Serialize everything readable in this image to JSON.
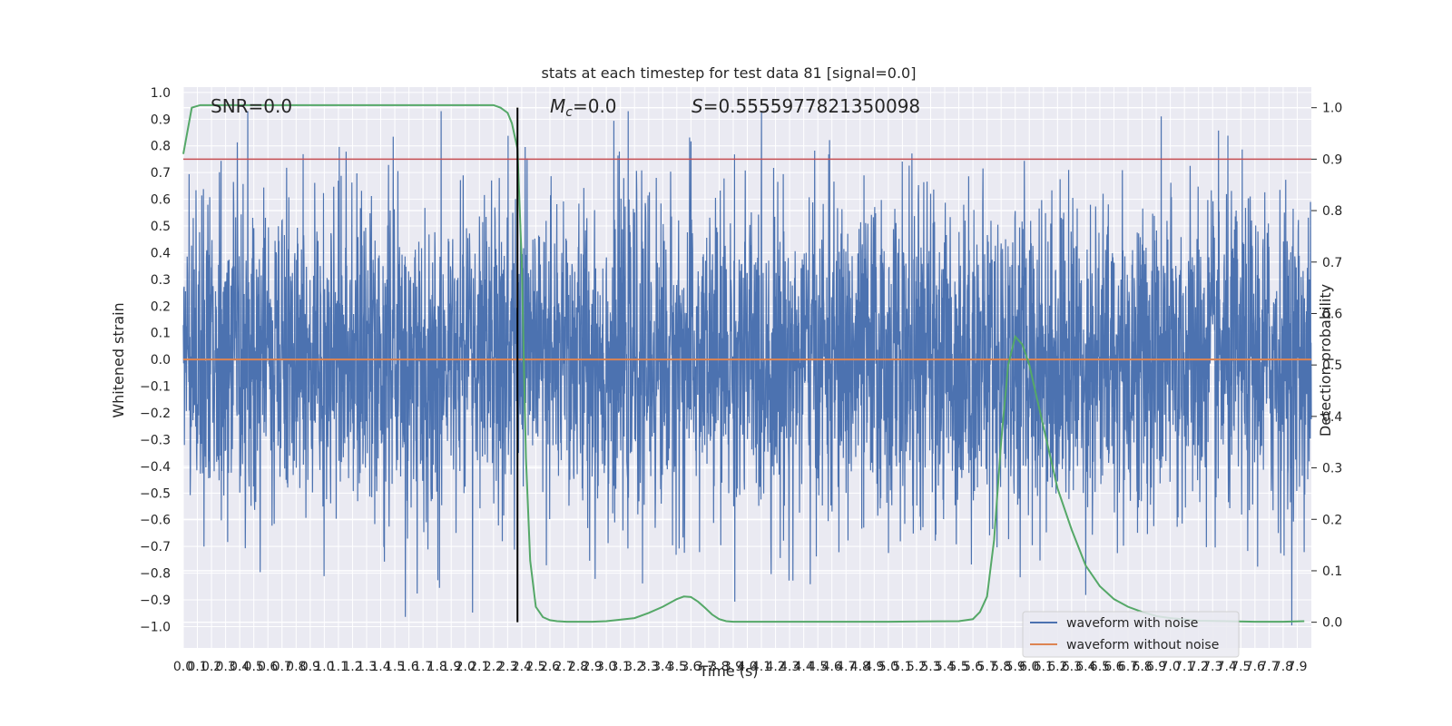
{
  "chart_data": {
    "type": "line",
    "title": "stats at each timestep for test data 81 [signal=0.0]",
    "xlabel": "Time (s)",
    "ylabel_left": "Whitened strain",
    "ylabel_right": "Detection probability",
    "xlim": [
      0.0,
      8.0
    ],
    "ylim_left": [
      -1.08,
      1.02
    ],
    "ylim_right": [
      -0.05,
      1.04
    ],
    "grid": true,
    "x_ticks": [
      "0.0",
      "0.1",
      "0.2",
      "0.3",
      "0.4",
      "0.5",
      "0.6",
      "0.7",
      "0.8",
      "0.9",
      "1.0",
      "1.1",
      "1.2",
      "1.3",
      "1.4",
      "1.5",
      "1.6",
      "1.7",
      "1.8",
      "1.9",
      "2.0",
      "2.1",
      "2.2",
      "2.3",
      "2.4",
      "2.5",
      "2.6",
      "2.7",
      "2.8",
      "2.9",
      "3.0",
      "3.1",
      "3.2",
      "3.3",
      "3.4",
      "3.5",
      "3.6",
      "3.7",
      "3.8",
      "3.9",
      "4.0",
      "4.1",
      "4.2",
      "4.3",
      "4.4",
      "4.5",
      "4.6",
      "4.7",
      "4.8",
      "4.9",
      "5.0",
      "5.1",
      "5.2",
      "5.3",
      "5.4",
      "5.5",
      "5.6",
      "5.7",
      "5.8",
      "5.9",
      "6.0",
      "6.1",
      "6.2",
      "6.3",
      "6.4",
      "6.5",
      "6.6",
      "6.7",
      "6.8",
      "6.9",
      "7.0",
      "7.1",
      "7.2",
      "7.3",
      "7.4",
      "7.5",
      "7.6",
      "7.7",
      "7.8",
      "7.9"
    ],
    "y_ticks_left": [
      "−1.0",
      "−0.9",
      "−0.8",
      "−0.7",
      "−0.6",
      "−0.5",
      "−0.4",
      "−0.3",
      "−0.2",
      "−0.1",
      "0.0",
      "0.1",
      "0.2",
      "0.3",
      "0.4",
      "0.5",
      "0.6",
      "0.7",
      "0.8",
      "0.9",
      "1.0"
    ],
    "y_ticks_right": [
      "0.0",
      "0.1",
      "0.2",
      "0.3",
      "0.4",
      "0.5",
      "0.6",
      "0.7",
      "0.8",
      "0.9",
      "1.0"
    ],
    "annotations": {
      "snr": "SNR=0.0",
      "mc_symbol": "M",
      "mc_sub": "c",
      "mc_value": "=0.0",
      "s_symbol": "S",
      "s_value": "=0.5555977821350098"
    },
    "threshold_right": 0.9,
    "vertical_marker_x": 2.37,
    "noise_std": 0.3,
    "series": [
      {
        "name": "waveform with noise",
        "color": "#4c72b0",
        "axis": "left",
        "kind": "noise",
        "x_range": [
          0.0,
          8.0
        ]
      },
      {
        "name": "waveform without noise",
        "color": "#dd8452",
        "axis": "left",
        "kind": "constant",
        "value": 0.0
      },
      {
        "name": "detection probability",
        "color": "#55a868",
        "axis": "right",
        "x": [
          0.0,
          0.06,
          0.12,
          0.2,
          0.3,
          0.5,
          1.0,
          1.5,
          2.0,
          2.1,
          2.2,
          2.25,
          2.3,
          2.33,
          2.37,
          2.4,
          2.43,
          2.46,
          2.5,
          2.55,
          2.6,
          2.65,
          2.72,
          2.8,
          2.9,
          3.0,
          3.2,
          3.3,
          3.4,
          3.5,
          3.55,
          3.6,
          3.65,
          3.7,
          3.75,
          3.8,
          3.85,
          3.9,
          4.0,
          4.5,
          5.0,
          5.5,
          5.6,
          5.65,
          5.7,
          5.75,
          5.8,
          5.85,
          5.9,
          5.95,
          6.0,
          6.05,
          6.1,
          6.15,
          6.2,
          6.3,
          6.4,
          6.5,
          6.6,
          6.7,
          6.8,
          6.9,
          7.0,
          7.2,
          7.4,
          7.6,
          7.8,
          7.95
        ],
        "values": [
          0.91,
          1.0,
          1.005,
          1.005,
          1.005,
          1.005,
          1.005,
          1.005,
          1.005,
          1.005,
          1.005,
          1.0,
          0.99,
          0.97,
          0.92,
          0.7,
          0.32,
          0.12,
          0.03,
          0.01,
          0.004,
          0.002,
          0.001,
          0.001,
          0.001,
          0.002,
          0.008,
          0.018,
          0.03,
          0.045,
          0.05,
          0.049,
          0.04,
          0.028,
          0.015,
          0.006,
          0.002,
          0.001,
          0.001,
          0.001,
          0.001,
          0.002,
          0.006,
          0.02,
          0.05,
          0.16,
          0.35,
          0.5,
          0.555,
          0.54,
          0.5,
          0.44,
          0.38,
          0.32,
          0.26,
          0.18,
          0.11,
          0.07,
          0.045,
          0.03,
          0.02,
          0.012,
          0.008,
          0.003,
          0.002,
          0.001,
          0.001,
          0.002
        ]
      }
    ],
    "legend_placement": "lower-right",
    "legend": [
      "waveform with noise",
      "waveform without noise"
    ]
  }
}
